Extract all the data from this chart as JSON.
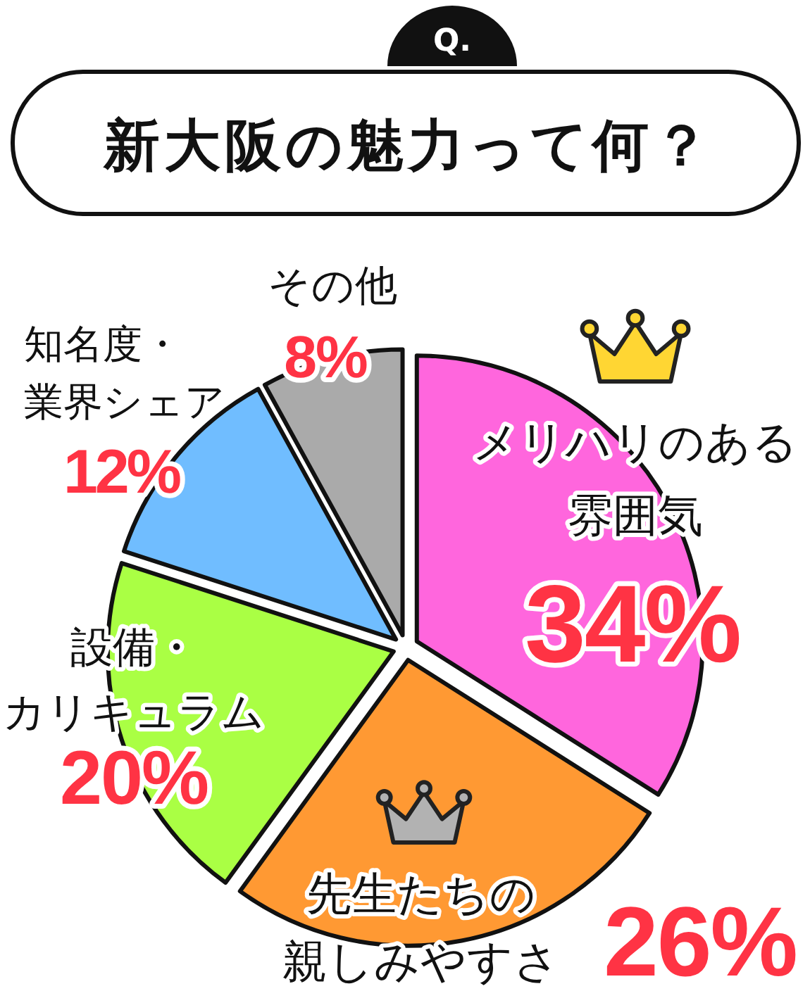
{
  "chart_data": {
    "type": "pie",
    "title": "新大阪の魅力って何？",
    "annotations": [
      "Q."
    ],
    "categories": [
      "メリハリのある雰囲気",
      "先生たちの親しみやすさ",
      "設備・カリキュラム",
      "知名度・業界シェア",
      "その他"
    ],
    "values": [
      34,
      26,
      20,
      12,
      8
    ],
    "value_labels": [
      "34%",
      "26%",
      "20%",
      "12%",
      "8%"
    ],
    "colors": [
      "#ff66dd",
      "#ff9933",
      "#aaff44",
      "#70bdff",
      "#aaaaaa"
    ]
  }
}
